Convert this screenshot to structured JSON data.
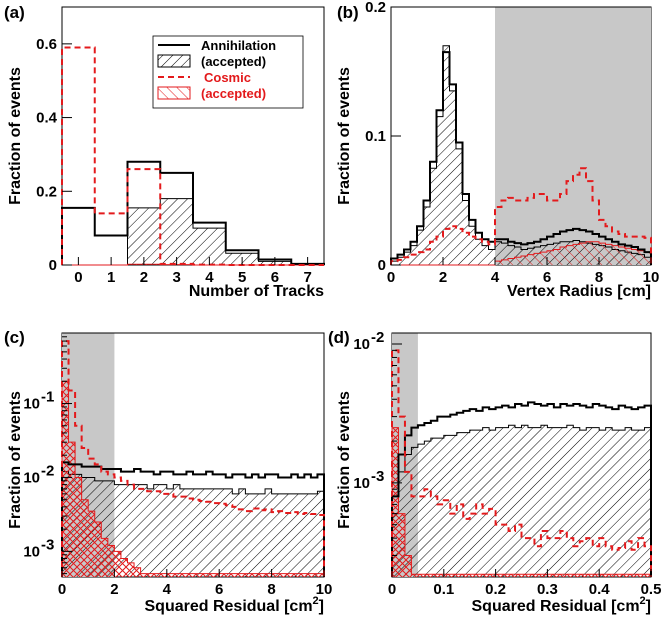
{
  "chart_data": [
    {
      "panel": "(a)",
      "type": "histogram",
      "xlabel": "Number of Tracks",
      "ylabel": "Fraction of events",
      "xlim": [
        -0.5,
        7.5
      ],
      "ylim": [
        0,
        0.7
      ],
      "xticks": [
        "0",
        "1",
        "2",
        "3",
        "4",
        "5",
        "6",
        "7"
      ],
      "xtick_values": [
        0,
        1,
        2,
        3,
        4,
        5,
        6,
        7
      ],
      "yticks": [
        "0",
        "0.2",
        "0.4",
        "0.6"
      ],
      "ytick_values": [
        0,
        0.2,
        0.4,
        0.6
      ],
      "scale": "linear",
      "grid": false,
      "legend_position": "top-right",
      "bin_edges": [
        -0.5,
        0.5,
        1.5,
        2.5,
        3.5,
        4.5,
        5.5,
        6.5,
        7.5
      ],
      "series": [
        {
          "name": "Annihilation",
          "style": "black-solid",
          "values": [
            0.155,
            0.08,
            0.28,
            0.25,
            0.115,
            0.04,
            0.015,
            0.003
          ]
        },
        {
          "name": "(accepted)",
          "style": "black-hatch",
          "values": [
            0,
            0,
            0.155,
            0.18,
            0.1,
            0.032,
            0.01,
            0.002
          ]
        },
        {
          "name": "Cosmic",
          "style": "red-dashed",
          "values": [
            0.59,
            0.14,
            0.26,
            0.003,
            0.001,
            0,
            0,
            0
          ]
        },
        {
          "name": "(accepted)",
          "style": "red-hatch",
          "values": [
            0,
            0,
            0.002,
            0.001,
            0,
            0,
            0,
            0
          ]
        }
      ]
    },
    {
      "panel": "(b)",
      "type": "histogram",
      "xlabel": "Vertex Radius [cm]",
      "ylabel": "Fraction of events",
      "xlim": [
        0,
        10
      ],
      "ylim": [
        0,
        0.2
      ],
      "xticks": [
        "0",
        "2",
        "4",
        "6",
        "8",
        "10"
      ],
      "xtick_values": [
        0,
        2,
        4,
        6,
        8,
        10
      ],
      "yticks": [
        "0",
        "0.1",
        "0.2"
      ],
      "ytick_values": [
        0,
        0.1,
        0.2
      ],
      "scale": "linear",
      "shaded_region": [
        4,
        10
      ],
      "bin_width": 0.25,
      "series": [
        {
          "name": "Annihilation",
          "style": "black-solid",
          "values": [
            0.005,
            0.008,
            0.012,
            0.018,
            0.03,
            0.05,
            0.08,
            0.12,
            0.165,
            0.14,
            0.095,
            0.055,
            0.035,
            0.025,
            0.02,
            0.018,
            0.02,
            0.02,
            0.018,
            0.017,
            0.016,
            0.017,
            0.018,
            0.02,
            0.022,
            0.024,
            0.026,
            0.027,
            0.028,
            0.027,
            0.026,
            0.024,
            0.022,
            0.02,
            0.018,
            0.016,
            0.015,
            0.014,
            0.012,
            0.01
          ]
        },
        {
          "name": "(accepted)",
          "style": "black-hatch",
          "values": [
            0.003,
            0.006,
            0.01,
            0.015,
            0.027,
            0.045,
            0.075,
            0.115,
            0.17,
            0.135,
            0.09,
            0.05,
            0.03,
            0.02,
            0.015,
            0.012,
            0.018,
            0.017,
            0.015,
            0.014,
            0.012,
            0.013,
            0.014,
            0.015,
            0.016,
            0.017,
            0.018,
            0.018,
            0.019,
            0.018,
            0.017,
            0.016,
            0.015,
            0.014,
            0.012,
            0.011,
            0.01,
            0.009,
            0.008,
            0.006
          ]
        },
        {
          "name": "Cosmic",
          "style": "red-dashed",
          "values": [
            0.003,
            0.004,
            0.006,
            0.008,
            0.01,
            0.012,
            0.018,
            0.022,
            0.028,
            0.03,
            0.028,
            0.025,
            0.022,
            0.02,
            0.018,
            0.016,
            0.045,
            0.05,
            0.052,
            0.05,
            0.05,
            0.052,
            0.055,
            0.055,
            0.05,
            0.05,
            0.055,
            0.065,
            0.07,
            0.075,
            0.065,
            0.05,
            0.035,
            0.03,
            0.026,
            0.024,
            0.022,
            0.022,
            0.022,
            0.021
          ]
        },
        {
          "name": "(accepted)",
          "style": "red-hatch",
          "values": [
            0,
            0,
            0,
            0,
            0,
            0,
            0,
            0,
            0,
            0,
            0,
            0,
            0,
            0,
            0,
            0,
            0.003,
            0.004,
            0.005,
            0.006,
            0.007,
            0.008,
            0.009,
            0.01,
            0.011,
            0.012,
            0.014,
            0.015,
            0.016,
            0.017,
            0.018,
            0.018,
            0.017,
            0.016,
            0.015,
            0.014,
            0.013,
            0.012,
            0.011,
            0.01
          ]
        }
      ]
    },
    {
      "panel": "(c)",
      "type": "histogram",
      "xlabel": "Squared Residual [cm",
      "xlabel_sup": "2",
      "xlabel_end": "]",
      "ylabel": "Fraction of events",
      "xlim": [
        0,
        10
      ],
      "ylim": [
        0.00045,
        0.9
      ],
      "xticks": [
        "0",
        "2",
        "4",
        "6",
        "8",
        "10"
      ],
      "xtick_values": [
        0,
        2,
        4,
        6,
        8,
        10
      ],
      "yticks": [
        "10",
        "10",
        "10"
      ],
      "ytick_sups": [
        "-3",
        "-2",
        "-1"
      ],
      "ytick_values": [
        0.001,
        0.01,
        0.1
      ],
      "scale": "log",
      "shaded_region": [
        0,
        2
      ],
      "bin_width": 0.25,
      "series": [
        {
          "name": "Annihilation",
          "style": "black-solid",
          "values": [
            0.016,
            0.015,
            0.015,
            0.014,
            0.014,
            0.014,
            0.013,
            0.013,
            0.013,
            0.012,
            0.012,
            0.013,
            0.012,
            0.012,
            0.011,
            0.012,
            0.012,
            0.011,
            0.011,
            0.012,
            0.011,
            0.011,
            0.012,
            0.011,
            0.011,
            0.01,
            0.011,
            0.011,
            0.01,
            0.011,
            0.01,
            0.011,
            0.011,
            0.01,
            0.01,
            0.011,
            0.01,
            0.011,
            0.01,
            0.011
          ]
        },
        {
          "name": "(accepted)",
          "style": "black-hatch",
          "values": [
            0.012,
            0.011,
            0.011,
            0.01,
            0.01,
            0.009,
            0.009,
            0.009,
            0.008,
            0.008,
            0.008,
            0.008,
            0.008,
            0.007,
            0.008,
            0.008,
            0.007,
            0.008,
            0.007,
            0.007,
            0.007,
            0.007,
            0.007,
            0.007,
            0.007,
            0.007,
            0.006,
            0.007,
            0.006,
            0.006,
            0.006,
            0.007,
            0.006,
            0.006,
            0.006,
            0.006,
            0.006,
            0.006,
            0.006,
            0.0065
          ]
        },
        {
          "name": "Cosmic",
          "style": "red-dashed",
          "values": [
            0.7,
            0.15,
            0.05,
            0.025,
            0.018,
            0.015,
            0.012,
            0.011,
            0.01,
            0.009,
            0.008,
            0.007,
            0.007,
            0.0065,
            0.0065,
            0.006,
            0.006,
            0.0055,
            0.0055,
            0.0052,
            0.005,
            0.0048,
            0.0047,
            0.0045,
            0.0044,
            0.0042,
            0.004,
            0.0037,
            0.0035,
            0.0038,
            0.0036,
            0.0037,
            0.0034,
            0.0035,
            0.0033,
            0.0034,
            0.0032,
            0.0033,
            0.0032,
            0.0031
          ]
        },
        {
          "name": "(accepted)",
          "style": "red-hatch",
          "values": [
            0.2,
            0.03,
            0.01,
            0.005,
            0.0035,
            0.0025,
            0.0015,
            0.0012,
            0.001,
            0.0008,
            0.0007,
            0.0006,
            0.0005,
            0.0005,
            0.0005,
            0.0005,
            0.0005,
            0.0005,
            0.0005,
            0.0005,
            0.0005,
            0.0005,
            0.0005,
            0.0005,
            0.0005,
            0.0005,
            0.0005,
            0.0005,
            0.0005,
            0.0005,
            0.0005,
            0.0005,
            0.0005,
            0.0005,
            0.0005,
            0.0005,
            0.0005,
            0.0005,
            0.0005,
            0.0005
          ]
        }
      ]
    },
    {
      "panel": "(d)",
      "type": "histogram",
      "xlabel": "Squared Residual [cm",
      "xlabel_sup": "2",
      "xlabel_end": "]",
      "ylabel": "Fraction of events",
      "xlim": [
        0,
        0.5
      ],
      "ylim": [
        0.00021,
        0.012
      ],
      "xticks": [
        "0",
        "0.1",
        "0.2",
        "0.3",
        "0.4",
        "0.5"
      ],
      "xtick_values": [
        0,
        0.1,
        0.2,
        0.3,
        0.4,
        0.5
      ],
      "yticks": [
        "10",
        "10"
      ],
      "ytick_sups": [
        "-3",
        "-2"
      ],
      "ytick_values": [
        0.001,
        0.01
      ],
      "scale": "log",
      "shaded_region": [
        0,
        0.05
      ],
      "bin_width": 0.0125,
      "series": [
        {
          "name": "Annihilation",
          "style": "black-solid",
          "values": [
            0.0008,
            0.0016,
            0.0022,
            0.0025,
            0.0026,
            0.0027,
            0.0028,
            0.003,
            0.003,
            0.0031,
            0.0032,
            0.0033,
            0.0034,
            0.0033,
            0.0035,
            0.0034,
            0.0035,
            0.0036,
            0.0035,
            0.0037,
            0.0036,
            0.0038,
            0.0037,
            0.0036,
            0.0037,
            0.0035,
            0.0037,
            0.0036,
            0.0037,
            0.0036,
            0.0035,
            0.0037,
            0.0036,
            0.0035,
            0.0034,
            0.0036,
            0.0035,
            0.0034,
            0.0035,
            0.0036
          ]
        },
        {
          "name": "(accepted)",
          "style": "black-hatch",
          "values": [
            0.0006,
            0.0012,
            0.0016,
            0.0018,
            0.0019,
            0.002,
            0.0021,
            0.0021,
            0.0022,
            0.0022,
            0.0023,
            0.0023,
            0.0024,
            0.0024,
            0.0025,
            0.0024,
            0.0025,
            0.0025,
            0.0026,
            0.0025,
            0.0026,
            0.0025,
            0.0025,
            0.0026,
            0.0025,
            0.0025,
            0.0025,
            0.0026,
            0.0025,
            0.0024,
            0.0025,
            0.0025,
            0.0024,
            0.0025,
            0.0024,
            0.0024,
            0.0025,
            0.0024,
            0.0024,
            0.0025
          ]
        },
        {
          "name": "Cosmic",
          "style": "red-dashed",
          "values": [
            0.009,
            0.003,
            0.0012,
            0.0008,
            0.0008,
            0.0009,
            0.0008,
            0.0007,
            0.00075,
            0.0006,
            0.0007,
            0.00055,
            0.0006,
            0.0007,
            0.0006,
            0.00065,
            0.0005,
            0.0005,
            0.00045,
            0.0005,
            0.0004,
            0.0004,
            0.00035,
            0.00045,
            0.0004,
            0.0004,
            0.00045,
            0.0004,
            0.00035,
            0.00038,
            0.0004,
            0.00035,
            0.0004,
            0.00035,
            0.00033,
            0.00034,
            0.00038,
            0.00033,
            0.0004,
            0.00035
          ]
        },
        {
          "name": "(accepted)",
          "style": "red-hatch",
          "values": [
            0.0025,
            0.0006,
            0.0003,
            0.00022,
            0.00022,
            0.00022,
            0.00022,
            0.00022,
            0.00022,
            0.00022,
            0.00022,
            0.00022,
            0.00022,
            0.00022,
            0.00022,
            0.00022,
            0.00022,
            0.00022,
            0.00022,
            0.00022,
            0.00022,
            0.00022,
            0.00022,
            0.00022,
            0.00022,
            0.00022,
            0.00022,
            0.00022,
            0.00022,
            0.00022,
            0.00022,
            0.00022,
            0.00022,
            0.00022,
            0.00022,
            0.00022,
            0.00022,
            0.00022,
            0.00022,
            0.00022
          ]
        }
      ]
    }
  ],
  "colors": {
    "annihilation": "#000000",
    "cosmic": "#e31a1c",
    "shade": "#c8c8c8"
  }
}
